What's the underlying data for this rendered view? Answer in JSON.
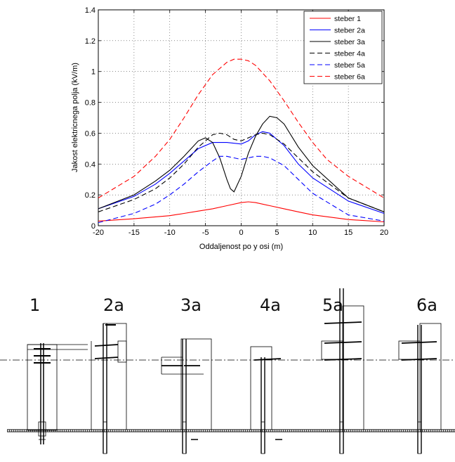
{
  "chart_data": {
    "type": "line",
    "xlabel": "Oddaljenost po y osi (m)",
    "ylabel": "Jakost elektricnega polja (kV/m)",
    "xlim": [
      -20,
      20
    ],
    "ylim": [
      0,
      1.4
    ],
    "xticks": [
      "-20",
      "-15",
      "-10",
      "-5",
      "0",
      "5",
      "10",
      "15",
      "20"
    ],
    "yticks": [
      "0",
      "0.2",
      "0.4",
      "0.6",
      "0.8",
      "1",
      "1.2",
      "1.4"
    ],
    "grid": true,
    "legend_position": "top-right",
    "series": [
      {
        "name": "steber 1",
        "color": "#ff0000",
        "dash": "solid",
        "x": [
          -20,
          -15,
          -10,
          -8,
          -6,
          -4,
          -2,
          0,
          1,
          2,
          4,
          6,
          8,
          10,
          15,
          20
        ],
        "y": [
          0.03,
          0.045,
          0.065,
          0.08,
          0.095,
          0.11,
          0.13,
          0.15,
          0.155,
          0.15,
          0.13,
          0.11,
          0.09,
          0.07,
          0.04,
          0.025
        ]
      },
      {
        "name": "steber 2a",
        "color": "#0000ff",
        "dash": "solid",
        "x": [
          -20,
          -15,
          -12,
          -10,
          -8,
          -6,
          -4,
          -2,
          0,
          1,
          2,
          3,
          4,
          6,
          8,
          10,
          15,
          20
        ],
        "y": [
          0.11,
          0.19,
          0.27,
          0.34,
          0.42,
          0.5,
          0.54,
          0.54,
          0.53,
          0.55,
          0.59,
          0.61,
          0.6,
          0.52,
          0.4,
          0.31,
          0.16,
          0.08
        ]
      },
      {
        "name": "steber 3a",
        "color": "#000000",
        "dash": "solid",
        "x": [
          -20,
          -15,
          -12,
          -10,
          -8,
          -6,
          -5,
          -4,
          -3,
          -2,
          -1.5,
          -1,
          0,
          1,
          2,
          3,
          4,
          5,
          6,
          8,
          10,
          15,
          20
        ],
        "y": [
          0.11,
          0.2,
          0.29,
          0.36,
          0.45,
          0.55,
          0.57,
          0.54,
          0.44,
          0.3,
          0.24,
          0.22,
          0.32,
          0.47,
          0.58,
          0.66,
          0.71,
          0.7,
          0.66,
          0.51,
          0.39,
          0.18,
          0.09
        ]
      },
      {
        "name": "steber 4a",
        "color": "#000000",
        "dash": "dashed",
        "x": [
          -20,
          -15,
          -12,
          -10,
          -8,
          -6,
          -4,
          -3,
          -2,
          -1,
          0,
          1,
          2,
          3,
          4,
          6,
          8,
          10,
          15,
          20
        ],
        "y": [
          0.09,
          0.17,
          0.24,
          0.31,
          0.4,
          0.51,
          0.59,
          0.6,
          0.59,
          0.56,
          0.55,
          0.57,
          0.59,
          0.6,
          0.59,
          0.53,
          0.44,
          0.35,
          0.18,
          0.09
        ]
      },
      {
        "name": "steber 5a",
        "color": "#0000ff",
        "dash": "dashed",
        "x": [
          -20,
          -15,
          -12,
          -10,
          -8,
          -6,
          -4,
          -3,
          -2,
          -1,
          0,
          1,
          2,
          3,
          4,
          6,
          8,
          10,
          15,
          20
        ],
        "y": [
          0.02,
          0.08,
          0.14,
          0.2,
          0.27,
          0.35,
          0.42,
          0.45,
          0.45,
          0.44,
          0.43,
          0.44,
          0.45,
          0.45,
          0.44,
          0.39,
          0.3,
          0.21,
          0.07,
          0.03
        ]
      },
      {
        "name": "steber 6a",
        "color": "#ff0000",
        "dash": "dashed",
        "x": [
          -20,
          -15,
          -12,
          -10,
          -8,
          -6,
          -4,
          -2,
          -1,
          0,
          1,
          2,
          4,
          6,
          8,
          10,
          12,
          15,
          20
        ],
        "y": [
          0.18,
          0.32,
          0.45,
          0.56,
          0.7,
          0.85,
          0.98,
          1.06,
          1.08,
          1.08,
          1.07,
          1.04,
          0.94,
          0.81,
          0.67,
          0.54,
          0.43,
          0.32,
          0.18
        ]
      }
    ]
  },
  "towers": {
    "labels": [
      "1",
      "2a",
      "3a",
      "4a",
      "5a",
      "6a"
    ]
  }
}
